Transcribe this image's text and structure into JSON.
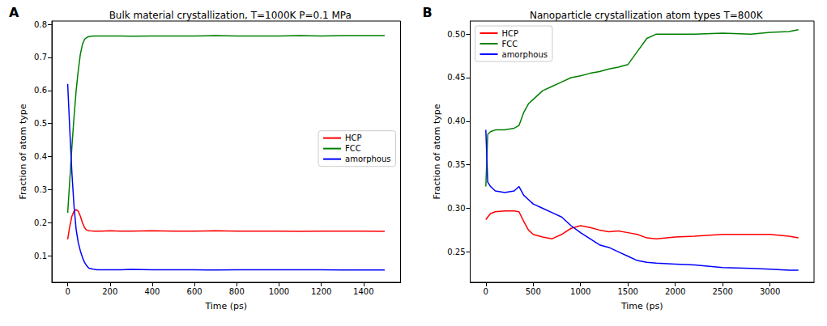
{
  "chart_data": [
    {
      "type": "line",
      "label": "A",
      "title": "Bulk material crystallization, T=1000K P=0.1 MPa",
      "x_label": "Time (ps)",
      "y_label": "Fraction of atom type",
      "x": [
        0,
        10,
        20,
        30,
        40,
        50,
        60,
        70,
        80,
        90,
        100,
        120,
        140,
        160,
        200,
        250,
        300,
        400,
        500,
        600,
        700,
        800,
        900,
        1000,
        1100,
        1200,
        1300,
        1400,
        1500
      ],
      "series": [
        {
          "name": "HCP",
          "color": "#ff0000",
          "values": [
            0.15,
            0.19,
            0.22,
            0.235,
            0.24,
            0.235,
            0.22,
            0.2,
            0.185,
            0.178,
            0.176,
            0.175,
            0.175,
            0.175,
            0.176,
            0.175,
            0.175,
            0.176,
            0.175,
            0.175,
            0.176,
            0.175,
            0.175,
            0.175,
            0.174,
            0.175,
            0.175,
            0.175,
            0.174
          ]
        },
        {
          "name": "FCC",
          "color": "#008000",
          "values": [
            0.23,
            0.33,
            0.43,
            0.52,
            0.6,
            0.66,
            0.71,
            0.74,
            0.755,
            0.76,
            0.763,
            0.765,
            0.765,
            0.765,
            0.765,
            0.765,
            0.764,
            0.765,
            0.765,
            0.765,
            0.766,
            0.765,
            0.765,
            0.765,
            0.766,
            0.765,
            0.766,
            0.766,
            0.766
          ]
        },
        {
          "name": "amorphous",
          "color": "#0000ff",
          "values": [
            0.62,
            0.48,
            0.35,
            0.25,
            0.18,
            0.14,
            0.115,
            0.095,
            0.08,
            0.07,
            0.063,
            0.06,
            0.058,
            0.058,
            0.058,
            0.058,
            0.059,
            0.058,
            0.058,
            0.058,
            0.057,
            0.058,
            0.058,
            0.058,
            0.058,
            0.058,
            0.057,
            0.057,
            0.057
          ]
        }
      ],
      "xlim": [
        -75,
        1575
      ],
      "xticks": [
        0,
        200,
        400,
        600,
        800,
        1000,
        1200,
        1400
      ],
      "ylim": [
        0.02,
        0.81
      ],
      "yticks": [
        0.1,
        0.2,
        0.3,
        0.4,
        0.5,
        0.6,
        0.7,
        0.8
      ],
      "grid": false,
      "legend": "center right"
    },
    {
      "type": "line",
      "label": "B",
      "title": "Nanoparticle crystallization atom types T=800K",
      "x_label": "Time (ps)",
      "y_label": "Fraction of atom type",
      "x": [
        0,
        20,
        50,
        100,
        200,
        300,
        350,
        400,
        450,
        500,
        600,
        700,
        800,
        900,
        1000,
        1100,
        1200,
        1300,
        1400,
        1500,
        1600,
        1700,
        1800,
        2000,
        2200,
        2500,
        2800,
        3000,
        3200,
        3300
      ],
      "series": [
        {
          "name": "HCP",
          "color": "#ff0000",
          "values": [
            0.287,
            0.29,
            0.294,
            0.296,
            0.297,
            0.297,
            0.296,
            0.285,
            0.275,
            0.27,
            0.267,
            0.265,
            0.27,
            0.277,
            0.28,
            0.278,
            0.275,
            0.273,
            0.274,
            0.272,
            0.27,
            0.266,
            0.265,
            0.267,
            0.268,
            0.27,
            0.27,
            0.27,
            0.268,
            0.266
          ]
        },
        {
          "name": "FCC",
          "color": "#008000",
          "values": [
            0.325,
            0.385,
            0.388,
            0.39,
            0.39,
            0.392,
            0.395,
            0.41,
            0.42,
            0.425,
            0.435,
            0.44,
            0.445,
            0.45,
            0.452,
            0.455,
            0.457,
            0.46,
            0.462,
            0.465,
            0.48,
            0.495,
            0.5,
            0.5,
            0.5,
            0.501,
            0.5,
            0.502,
            0.503,
            0.505
          ]
        },
        {
          "name": "amorphous",
          "color": "#0000ff",
          "values": [
            0.39,
            0.33,
            0.325,
            0.32,
            0.318,
            0.32,
            0.325,
            0.315,
            0.31,
            0.305,
            0.3,
            0.295,
            0.29,
            0.28,
            0.272,
            0.265,
            0.258,
            0.255,
            0.25,
            0.245,
            0.24,
            0.238,
            0.237,
            0.236,
            0.235,
            0.232,
            0.231,
            0.23,
            0.229,
            0.229
          ]
        }
      ],
      "xlim": [
        -165,
        3465
      ],
      "xticks": [
        0,
        500,
        1000,
        1500,
        2000,
        2500,
        3000
      ],
      "ylim": [
        0.215,
        0.515
      ],
      "yticks": [
        0.25,
        {
          "value": 0.3,
          "label": "0.30"
        },
        0.35,
        {
          "value": 0.4,
          "label": "0.40"
        },
        0.45,
        {
          "value": 0.5,
          "label": "0.50"
        }
      ],
      "grid": false,
      "legend": "upper left"
    }
  ]
}
